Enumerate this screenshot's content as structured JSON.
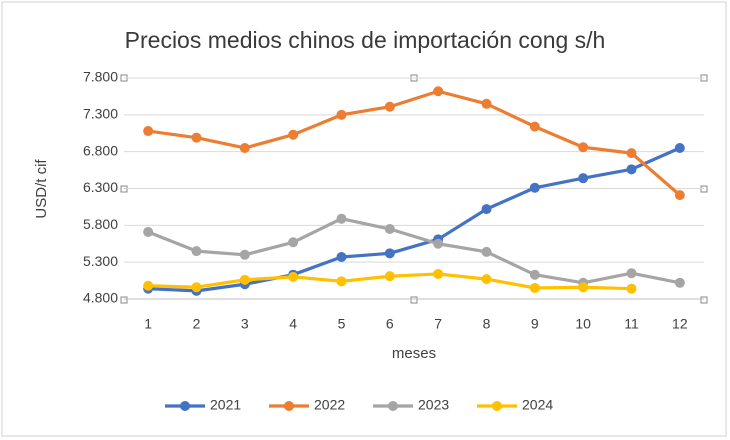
{
  "chart_data": {
    "type": "line",
    "title": "Precios medios chinos de importación cong s/h",
    "x_label": "meses",
    "y_label": "USD/t cif",
    "categories": [
      1,
      2,
      3,
      4,
      5,
      6,
      7,
      8,
      9,
      10,
      11,
      12
    ],
    "series": [
      {
        "name": "2021",
        "color": "#4472c4",
        "values": [
          4940,
          4910,
          5000,
          5130,
          5370,
          5420,
          5610,
          6020,
          6310,
          6440,
          6560,
          6850
        ]
      },
      {
        "name": "2022",
        "color": "#ed7d31",
        "values": [
          7080,
          6990,
          6850,
          7030,
          7300,
          7410,
          7620,
          7450,
          7140,
          6860,
          6780,
          6210
        ]
      },
      {
        "name": "2023",
        "color": "#a5a5a5",
        "values": [
          5710,
          5450,
          5400,
          5570,
          5890,
          5750,
          5550,
          5440,
          5130,
          5020,
          5150,
          5020
        ]
      },
      {
        "name": "2024",
        "color": "#ffc000",
        "values": [
          4980,
          4960,
          5060,
          5100,
          5040,
          5110,
          5140,
          5070,
          4950,
          4960,
          4940,
          null
        ]
      }
    ],
    "ylim": [
      4800,
      7800
    ],
    "yticks": [
      {
        "value": 4800,
        "label": "4.800"
      },
      {
        "value": 5300,
        "label": "5.300"
      },
      {
        "value": 5800,
        "label": "5.800"
      },
      {
        "value": 6300,
        "label": "6.300"
      },
      {
        "value": 6800,
        "label": "6.800"
      },
      {
        "value": 7300,
        "label": "7.300"
      },
      {
        "value": 7800,
        "label": "7.800"
      }
    ],
    "grid": true,
    "legend": "bottom"
  }
}
